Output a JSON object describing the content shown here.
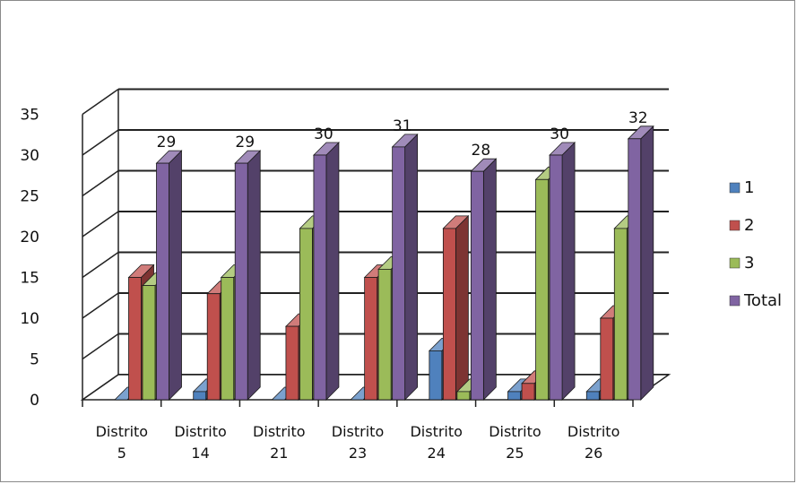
{
  "chart_data": {
    "type": "bar",
    "categories": [
      [
        "Distrito",
        "5"
      ],
      [
        "Distrito",
        "14"
      ],
      [
        "Distrito",
        "21"
      ],
      [
        "Distrito",
        "23"
      ],
      [
        "Distrito",
        "24"
      ],
      [
        "Distrito",
        "25"
      ],
      [
        "Distrito",
        "26"
      ]
    ],
    "series": [
      {
        "name": "1",
        "color": "#4f81bd",
        "values": [
          0,
          1,
          0,
          0,
          6,
          1,
          1
        ]
      },
      {
        "name": "2",
        "color": "#c0504d",
        "values": [
          15,
          13,
          9,
          15,
          21,
          2,
          10
        ]
      },
      {
        "name": "3",
        "color": "#9bbb59",
        "values": [
          14,
          15,
          21,
          16,
          1,
          27,
          21
        ]
      },
      {
        "name": "Total",
        "color": "#8064a2",
        "values": [
          29,
          29,
          30,
          31,
          28,
          30,
          32
        ]
      }
    ],
    "data_labels": [
      "29",
      "29",
      "30",
      "31",
      "28",
      "30",
      "32"
    ],
    "ylim": [
      0,
      35
    ],
    "yticks": [
      "0",
      "5",
      "10",
      "15",
      "20",
      "25",
      "30",
      "35"
    ],
    "grid": true,
    "legend_position": "right",
    "style": "3d-clustered-column"
  }
}
